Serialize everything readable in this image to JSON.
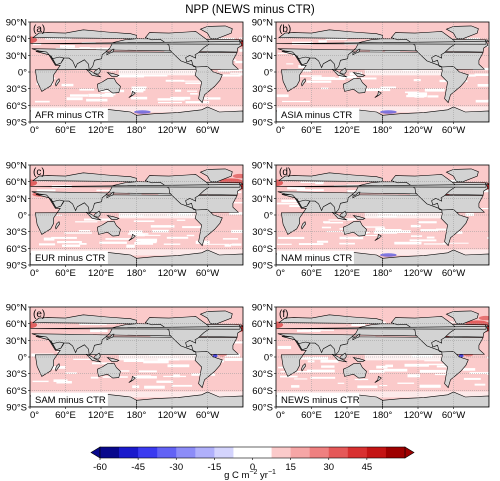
{
  "title": "NPP (NEWS minus CTR)",
  "chart_data": {
    "type": "heatmap",
    "title": "NPP (NEWS minus CTR)",
    "lat_ticks": [
      "90°N",
      "60°N",
      "30°N",
      "0°",
      "30°S",
      "60°S",
      "90°S"
    ],
    "lon_ticks": [
      "0°",
      "60°E",
      "120°E",
      "180°",
      "120°W",
      "60°W"
    ],
    "panels": [
      {
        "letter": "(a)",
        "label": "AFR minus CTR",
        "accent": "#d21919",
        "hotspots": [
          "western-europe",
          "sea-of-japan-south",
          "pacific-sector-weak"
        ]
      },
      {
        "letter": "(b)",
        "label": "ASIA minus CTR",
        "accent": "#d21919",
        "hotspots": [
          "east-china-sea",
          "south-china-sea",
          "pacific-sector-weak"
        ]
      },
      {
        "letter": "(c)",
        "label": "EUR minus CTR",
        "accent": "#d21919",
        "hotspots": [
          "western-europe",
          "north-atlantic",
          "mediterranean"
        ]
      },
      {
        "letter": "(d)",
        "label": "NAM minus CTR",
        "accent": "#d21919",
        "hotspots": [
          "western-europe",
          "us-east-coast",
          "pacific-sector-weak"
        ]
      },
      {
        "letter": "(e)",
        "label": "SAM minus CTR",
        "accent": "#d21919",
        "hotspots": [
          "western-europe",
          "caribbean",
          "amazon-plume"
        ]
      },
      {
        "letter": "(f)",
        "label": "NEWS minus CTR",
        "accent": "#d21919",
        "hotspots": [
          "western-europe",
          "east-china-sea",
          "us-east-coast",
          "amazon-plume",
          "north-atlantic"
        ]
      }
    ],
    "colorbar": {
      "ticks": [
        "-60",
        "-45",
        "-30",
        "-15",
        "0",
        "15",
        "30",
        "45"
      ],
      "levels": [
        -60,
        -52.5,
        -45,
        -37.5,
        -30,
        -22.5,
        -15,
        -7.5,
        0,
        7.5,
        15,
        22.5,
        30,
        37.5,
        45,
        52.5,
        60
      ],
      "colors": [
        "#08088c",
        "#1a1acc",
        "#3a3af0",
        "#6262f5",
        "#8c8cf8",
        "#b0b0fb",
        "#d4d4fd",
        "#ffffff",
        "#ffffff",
        "#fbcaca",
        "#f6a6a6",
        "#ef8080",
        "#e55858",
        "#d83030",
        "#c41414",
        "#9e0000"
      ],
      "unit_main": "g C m",
      "unit_exp1": "−2",
      "unit_mid": " yr",
      "unit_exp2": "−1"
    },
    "colors": {
      "ocean_background": "#ffffff",
      "positive_background": "#fbcaca",
      "land": "#d3d3d3",
      "coastline": "#000000",
      "strong_positive": "#d21919",
      "strong_negative": "#2a2ad8"
    }
  }
}
